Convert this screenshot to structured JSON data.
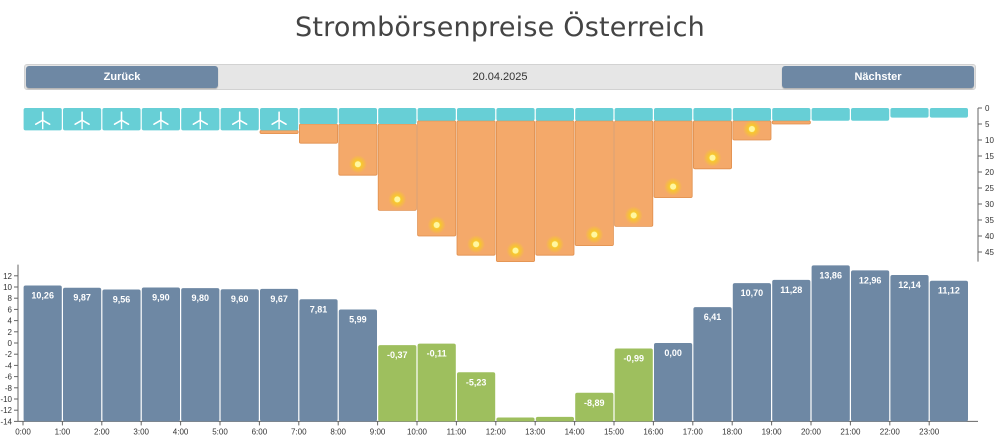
{
  "page": {
    "title": "Strombörsenpreise Österreich",
    "date": "20.04.2025",
    "back_label": "Zurück",
    "next_label": "Nächster"
  },
  "colors": {
    "wind": "#67cfd6",
    "solar": "#f4a96a",
    "sun_icon": "#f7c530",
    "price_positive": "#6e88a4",
    "price_negative": "#9ebf5e",
    "nav_button": "#6e88a4"
  },
  "chart_data": [
    {
      "type": "bar",
      "name": "generation",
      "categories": [
        "0:00",
        "1:00",
        "2:00",
        "3:00",
        "4:00",
        "5:00",
        "6:00",
        "7:00",
        "8:00",
        "9:00",
        "10:00",
        "11:00",
        "12:00",
        "13:00",
        "14:00",
        "15:00",
        "16:00",
        "17:00",
        "18:00",
        "19:00",
        "20:00",
        "21:00",
        "22:00",
        "23:00"
      ],
      "series": [
        {
          "key": "wind",
          "values": [
            7,
            7,
            7,
            7,
            7,
            7,
            7,
            5,
            5,
            5,
            4,
            4,
            4,
            4,
            4,
            4,
            4,
            4,
            4,
            4,
            4,
            4,
            3,
            3
          ]
        },
        {
          "key": "solar",
          "values": [
            0,
            0,
            0,
            0,
            0,
            0,
            1,
            6,
            16,
            27,
            36,
            42,
            44,
            42,
            39,
            33,
            24,
            15,
            6,
            1,
            0,
            0,
            0,
            0
          ]
        }
      ],
      "icons": [
        "wind",
        "wind",
        "wind",
        "wind",
        "wind",
        "wind",
        "wind",
        "",
        "sun",
        "sun",
        "sun",
        "sun",
        "sun",
        "sun",
        "sun",
        "sun",
        "sun",
        "sun",
        "sun",
        "",
        "",
        "",
        "",
        ""
      ],
      "y_ticks": [
        0,
        5,
        10,
        15,
        20,
        25,
        30,
        35,
        40,
        45
      ],
      "ylim": [
        0,
        48
      ],
      "y_axis_side": "right",
      "inverted": true
    },
    {
      "type": "bar",
      "name": "price",
      "categories": [
        "0:00",
        "1:00",
        "2:00",
        "3:00",
        "4:00",
        "5:00",
        "6:00",
        "7:00",
        "8:00",
        "9:00",
        "10:00",
        "11:00",
        "12:00",
        "13:00",
        "14:00",
        "15:00",
        "16:00",
        "17:00",
        "18:00",
        "19:00",
        "20:00",
        "21:00",
        "22:00",
        "23:00"
      ],
      "values": [
        10.26,
        9.87,
        9.56,
        9.9,
        9.8,
        9.6,
        9.67,
        7.81,
        5.99,
        -0.37,
        -0.11,
        -5.23,
        -13.3,
        -13.2,
        -8.89,
        -0.99,
        0.0,
        6.41,
        10.7,
        11.28,
        13.86,
        12.96,
        12.14,
        11.12
      ],
      "labels": [
        "10,26",
        "9,87",
        "9,56",
        "9,90",
        "9,80",
        "9,60",
        "9,67",
        "7,81",
        "5,99",
        "-0,37",
        "-0,11",
        "-5,23",
        "",
        "",
        "-8,89",
        "-0,99",
        "0,00",
        "6,41",
        "10,70",
        "11,28",
        "13,86",
        "12,96",
        "12,14",
        "11,12"
      ],
      "y_ticks": [
        12,
        10,
        8,
        6,
        4,
        2,
        0,
        -2,
        -4,
        -6,
        -8,
        -10,
        -12,
        -14
      ],
      "ylim": [
        -14,
        14
      ],
      "y_axis_side": "left",
      "highlight": "green for hours with price below the daily reference"
    }
  ]
}
